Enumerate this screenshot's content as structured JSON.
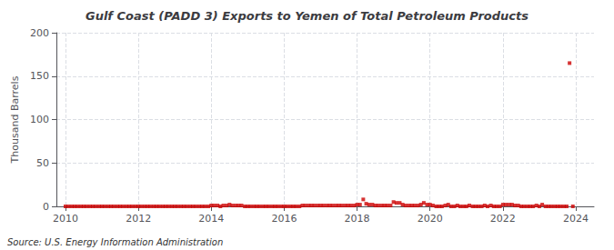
{
  "chart_data": {
    "type": "scatter",
    "title": "Gulf Coast (PADD 3) Exports to Yemen of Total Petroleum Products",
    "ylabel": "Thousand Barrels",
    "annotations": [
      "Source: U.S. Energy Information Administration"
    ],
    "x": [
      2010.0,
      2010.08,
      2010.17,
      2010.25,
      2010.33,
      2010.42,
      2010.5,
      2010.58,
      2010.67,
      2010.75,
      2010.83,
      2010.92,
      2011.0,
      2011.08,
      2011.17,
      2011.25,
      2011.33,
      2011.42,
      2011.5,
      2011.58,
      2011.67,
      2011.75,
      2011.83,
      2011.92,
      2012.0,
      2012.08,
      2012.17,
      2012.25,
      2012.33,
      2012.42,
      2012.5,
      2012.58,
      2012.67,
      2012.75,
      2012.83,
      2012.92,
      2013.0,
      2013.08,
      2013.17,
      2013.25,
      2013.33,
      2013.42,
      2013.5,
      2013.58,
      2013.67,
      2013.75,
      2013.83,
      2013.92,
      2014.0,
      2014.08,
      2014.17,
      2014.25,
      2014.33,
      2014.42,
      2014.5,
      2014.58,
      2014.67,
      2014.75,
      2014.83,
      2014.92,
      2015.0,
      2015.08,
      2015.17,
      2015.25,
      2015.33,
      2015.42,
      2015.5,
      2015.58,
      2015.67,
      2015.75,
      2015.83,
      2015.92,
      2016.0,
      2016.08,
      2016.17,
      2016.25,
      2016.33,
      2016.42,
      2016.5,
      2016.58,
      2016.67,
      2016.75,
      2016.83,
      2016.92,
      2017.0,
      2017.08,
      2017.17,
      2017.25,
      2017.33,
      2017.42,
      2017.5,
      2017.58,
      2017.67,
      2017.75,
      2017.83,
      2017.92,
      2018.0,
      2018.08,
      2018.17,
      2018.25,
      2018.33,
      2018.42,
      2018.5,
      2018.58,
      2018.67,
      2018.75,
      2018.83,
      2018.92,
      2019.0,
      2019.08,
      2019.17,
      2019.25,
      2019.33,
      2019.42,
      2019.5,
      2019.58,
      2019.67,
      2019.75,
      2019.83,
      2019.92,
      2020.0,
      2020.08,
      2020.17,
      2020.25,
      2020.33,
      2020.42,
      2020.5,
      2020.58,
      2020.67,
      2020.75,
      2020.83,
      2020.92,
      2021.0,
      2021.08,
      2021.17,
      2021.25,
      2021.33,
      2021.42,
      2021.5,
      2021.58,
      2021.67,
      2021.75,
      2021.83,
      2021.92,
      2022.0,
      2022.08,
      2022.17,
      2022.25,
      2022.33,
      2022.42,
      2022.5,
      2022.58,
      2022.67,
      2022.75,
      2022.83,
      2022.92,
      2023.0,
      2023.08,
      2023.17,
      2023.25,
      2023.33,
      2023.42,
      2023.5,
      2023.58,
      2023.67,
      2023.75,
      2023.83,
      2023.92
    ],
    "values": [
      0,
      0,
      0,
      0,
      0,
      0,
      0,
      0,
      0,
      0,
      0,
      0,
      0,
      0,
      0,
      0,
      0,
      0,
      0,
      0,
      0,
      0,
      0,
      0,
      0,
      0,
      0,
      0,
      0,
      0,
      0,
      0,
      0,
      0,
      0,
      0,
      0,
      0,
      0,
      0,
      0,
      0,
      0,
      0,
      0,
      0,
      0,
      0,
      1,
      1,
      1,
      0,
      1,
      1,
      2,
      1,
      1,
      1,
      1,
      0,
      0,
      0,
      0,
      0,
      0,
      0,
      0,
      0,
      0,
      0,
      0,
      0,
      0,
      0,
      0,
      0,
      0,
      0,
      1,
      1,
      1,
      1,
      1,
      1,
      1,
      1,
      1,
      1,
      1,
      1,
      1,
      1,
      1,
      1,
      1,
      1,
      2,
      2,
      8,
      3,
      2,
      2,
      1,
      1,
      1,
      1,
      1,
      1,
      5,
      4,
      4,
      2,
      1,
      1,
      1,
      1,
      1,
      2,
      4,
      2,
      2,
      1,
      0,
      0,
      0,
      1,
      2,
      0,
      0,
      1,
      0,
      0,
      0,
      1,
      0,
      0,
      0,
      0,
      1,
      0,
      1,
      0,
      0,
      0,
      2,
      2,
      2,
      2,
      1,
      1,
      0,
      0,
      0,
      0,
      0,
      1,
      0,
      2,
      0,
      0,
      0,
      0,
      0,
      0,
      0,
      0,
      165,
      0
    ],
    "color": "#cc0000",
    "marker": "square",
    "xlim": [
      2009.75,
      2024.5
    ],
    "xticks": [
      2010,
      2012,
      2014,
      2016,
      2018,
      2020,
      2022,
      2024
    ],
    "ylim": [
      0,
      200
    ],
    "yticks": [
      0,
      50,
      100,
      150,
      200
    ],
    "grid": true
  }
}
